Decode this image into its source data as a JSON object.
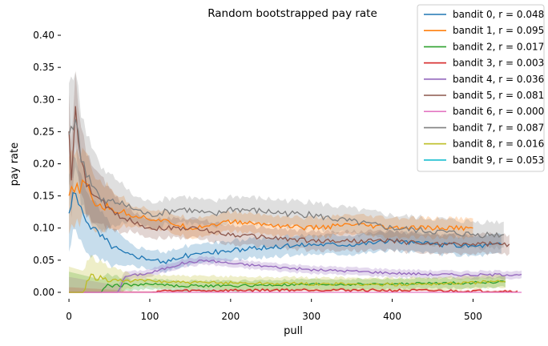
{
  "chart_data": {
    "type": "line",
    "title": "Random bootstrapped pay rate",
    "xlabel": "pull",
    "ylabel": "pay rate",
    "xlim": [
      -10,
      565
    ],
    "ylim": [
      -0.01,
      0.41
    ],
    "xticks": [
      0,
      100,
      200,
      300,
      400,
      500
    ],
    "yticks": [
      0.0,
      0.05,
      0.1,
      0.15,
      0.2,
      0.25,
      0.3,
      0.35,
      0.4
    ],
    "ytick_labels": [
      "0.00",
      "0.05",
      "0.10",
      "0.15",
      "0.20",
      "0.25",
      "0.30",
      "0.35",
      "0.40"
    ],
    "grid": false,
    "legend_position": "top-right",
    "band": "shaded bootstrap interval around each line",
    "series": [
      {
        "name": "bandit 0, r = 0.048",
        "color": "#1f77b4",
        "band": 0.015,
        "points": [
          [
            0,
            0.12
          ],
          [
            5,
            0.15
          ],
          [
            15,
            0.13
          ],
          [
            30,
            0.1
          ],
          [
            50,
            0.075
          ],
          [
            70,
            0.06
          ],
          [
            90,
            0.055
          ],
          [
            110,
            0.05
          ],
          [
            120,
            0.045
          ],
          [
            135,
            0.055
          ],
          [
            160,
            0.06
          ],
          [
            200,
            0.065
          ],
          [
            250,
            0.07
          ],
          [
            300,
            0.075
          ],
          [
            350,
            0.075
          ],
          [
            400,
            0.08
          ],
          [
            450,
            0.075
          ],
          [
            500,
            0.072
          ],
          [
            535,
            0.075
          ]
        ]
      },
      {
        "name": "bandit 1, r = 0.095",
        "color": "#ff7f0e",
        "band": 0.015,
        "points": [
          [
            0,
            0.15
          ],
          [
            10,
            0.16
          ],
          [
            20,
            0.17
          ],
          [
            30,
            0.14
          ],
          [
            50,
            0.13
          ],
          [
            80,
            0.12
          ],
          [
            120,
            0.11
          ],
          [
            150,
            0.1
          ],
          [
            200,
            0.11
          ],
          [
            250,
            0.105
          ],
          [
            300,
            0.1
          ],
          [
            350,
            0.105
          ],
          [
            400,
            0.1
          ],
          [
            450,
            0.1
          ],
          [
            500,
            0.1
          ]
        ]
      },
      {
        "name": "bandit 2, r = 0.017",
        "color": "#2ca02c",
        "band": 0.008,
        "points": [
          [
            0,
            0.0
          ],
          [
            40,
            0.0
          ],
          [
            45,
            0.01
          ],
          [
            80,
            0.012
          ],
          [
            110,
            0.013
          ],
          [
            130,
            0.01
          ],
          [
            200,
            0.01
          ],
          [
            300,
            0.012
          ],
          [
            400,
            0.013
          ],
          [
            500,
            0.015
          ],
          [
            540,
            0.016
          ]
        ]
      },
      {
        "name": "bandit 3, r = 0.003",
        "color": "#d62728",
        "band": 0.002,
        "points": [
          [
            0,
            0.0
          ],
          [
            105,
            0.0
          ],
          [
            110,
            0.002
          ],
          [
            200,
            0.003
          ],
          [
            300,
            0.004
          ],
          [
            400,
            0.003
          ],
          [
            500,
            0.002
          ],
          [
            555,
            0.002
          ]
        ]
      },
      {
        "name": "bandit 4, r = 0.036",
        "color": "#9467bd",
        "band": 0.006,
        "points": [
          [
            0,
            0.0
          ],
          [
            60,
            0.0
          ],
          [
            70,
            0.025
          ],
          [
            100,
            0.03
          ],
          [
            140,
            0.045
          ],
          [
            170,
            0.05
          ],
          [
            200,
            0.045
          ],
          [
            250,
            0.04
          ],
          [
            300,
            0.035
          ],
          [
            350,
            0.033
          ],
          [
            400,
            0.03
          ],
          [
            450,
            0.028
          ],
          [
            500,
            0.027
          ],
          [
            560,
            0.028
          ]
        ]
      },
      {
        "name": "bandit 5, r = 0.081",
        "color": "#8c564b",
        "band": 0.015,
        "points": [
          [
            0,
            0.26
          ],
          [
            3,
            0.17
          ],
          [
            8,
            0.28
          ],
          [
            15,
            0.2
          ],
          [
            25,
            0.16
          ],
          [
            40,
            0.14
          ],
          [
            60,
            0.12
          ],
          [
            100,
            0.1
          ],
          [
            150,
            0.1
          ],
          [
            200,
            0.09
          ],
          [
            250,
            0.085
          ],
          [
            300,
            0.08
          ],
          [
            350,
            0.08
          ],
          [
            400,
            0.08
          ],
          [
            450,
            0.075
          ],
          [
            500,
            0.075
          ],
          [
            545,
            0.075
          ]
        ]
      },
      {
        "name": "bandit 6, r = 0.000",
        "color": "#e377c2",
        "band": 0.0,
        "points": [
          [
            0,
            0.0
          ],
          [
            560,
            0.0
          ]
        ]
      },
      {
        "name": "bandit 7, r = 0.087",
        "color": "#7f7f7f",
        "band": 0.02,
        "points": [
          [
            0,
            0.25
          ],
          [
            8,
            0.27
          ],
          [
            15,
            0.21
          ],
          [
            25,
            0.18
          ],
          [
            40,
            0.14
          ],
          [
            60,
            0.14
          ],
          [
            80,
            0.13
          ],
          [
            100,
            0.12
          ],
          [
            140,
            0.13
          ],
          [
            180,
            0.12
          ],
          [
            200,
            0.13
          ],
          [
            250,
            0.125
          ],
          [
            300,
            0.12
          ],
          [
            350,
            0.11
          ],
          [
            400,
            0.1
          ],
          [
            450,
            0.095
          ],
          [
            500,
            0.09
          ],
          [
            538,
            0.09
          ]
        ]
      },
      {
        "name": "bandit 8, r = 0.016",
        "color": "#bcbd22",
        "band": 0.01,
        "points": [
          [
            0,
            0.0
          ],
          [
            20,
            0.0
          ],
          [
            22,
            0.02
          ],
          [
            30,
            0.025
          ],
          [
            45,
            0.02
          ],
          [
            70,
            0.018
          ],
          [
            100,
            0.018
          ],
          [
            150,
            0.015
          ],
          [
            200,
            0.015
          ],
          [
            300,
            0.013
          ],
          [
            400,
            0.012
          ],
          [
            500,
            0.015
          ],
          [
            540,
            0.017
          ]
        ]
      },
      {
        "name": "bandit 9, r = 0.053",
        "color": "#17becf",
        "band": 0.0,
        "points": []
      }
    ]
  }
}
